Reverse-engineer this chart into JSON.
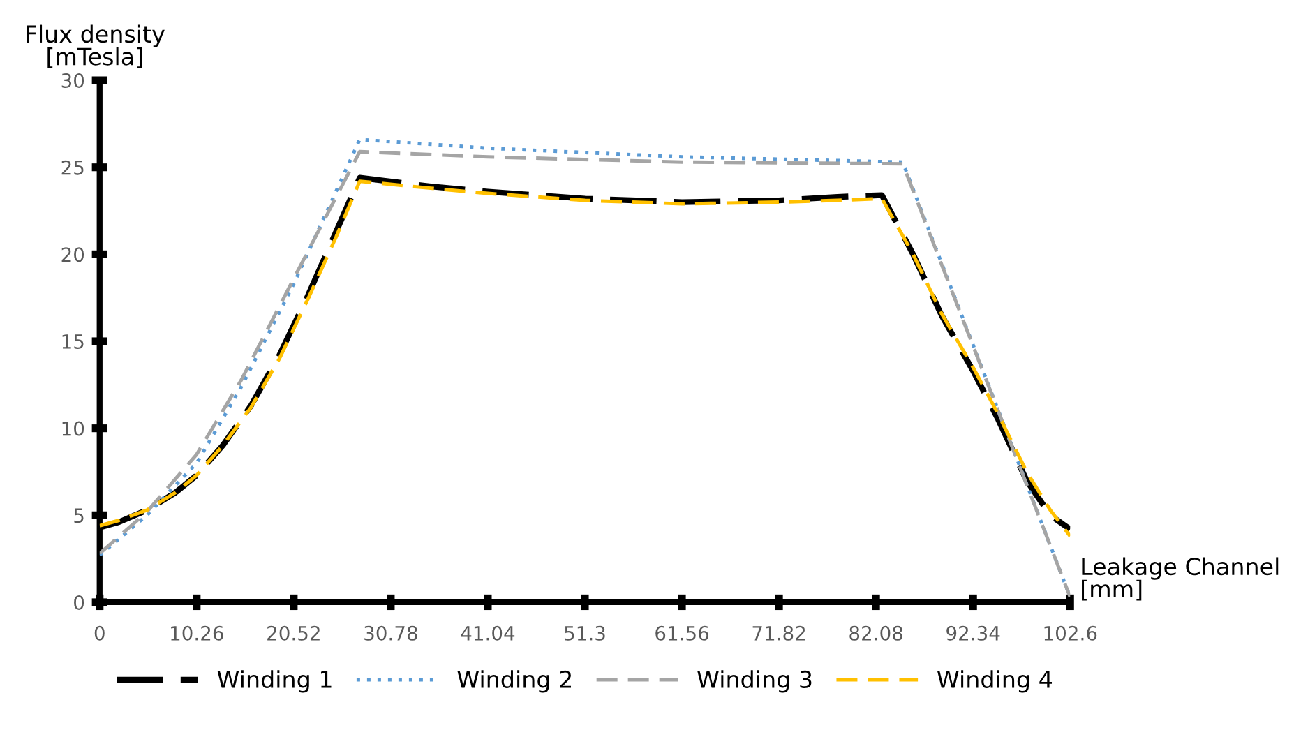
{
  "chart_data": {
    "type": "line",
    "xlabel": "Leakage Channel\n[mm]",
    "ylabel": "Flux density\n[mTesla]",
    "xlim": [
      0,
      102.6
    ],
    "xticks": [
      0,
      10.26,
      20.52,
      30.78,
      41.04,
      51.3,
      61.56,
      71.82,
      82.08,
      92.34,
      102.6
    ],
    "ylim": [
      0,
      30
    ],
    "yticks": [
      0,
      5,
      10,
      15,
      20,
      25,
      30
    ],
    "grid": false,
    "legend": "bottom",
    "series": [
      {
        "name": "Winding 1",
        "color": "#000000",
        "line_style": "dashed",
        "x": [
          0,
          2,
          5,
          8,
          10.26,
          13,
          16,
          19,
          22,
          25,
          27.5,
          35,
          41.04,
          51.3,
          61.56,
          71.82,
          78,
          82.7,
          86,
          89,
          92.34,
          95,
          98,
          100.5,
          102.6
        ],
        "values": [
          4.3,
          4.6,
          5.3,
          6.3,
          7.3,
          9.0,
          11.3,
          14.2,
          17.6,
          21.3,
          24.4,
          23.9,
          23.6,
          23.2,
          23.0,
          23.1,
          23.3,
          23.4,
          20.0,
          16.5,
          13.3,
          10.5,
          7.0,
          5.0,
          4.2
        ]
      },
      {
        "name": "Winding 2",
        "color": "#5b9bd5",
        "line_style": "dotted",
        "x": [
          0,
          5,
          10.26,
          15,
          20.52,
          27.5,
          41.04,
          61.56,
          84.9,
          102.6
        ],
        "values": [
          2.7,
          5.0,
          8.0,
          12.4,
          18.3,
          26.6,
          26.1,
          25.6,
          25.3,
          0.3
        ]
      },
      {
        "name": "Winding 3",
        "color": "#a5a5a5",
        "line_style": "dashed",
        "x": [
          0,
          5,
          10.26,
          15,
          20.52,
          27.5,
          41.04,
          61.56,
          84.9,
          102.6
        ],
        "values": [
          2.8,
          5.2,
          8.5,
          12.8,
          18.6,
          25.9,
          25.6,
          25.3,
          25.2,
          0.3
        ]
      },
      {
        "name": "Winding 4",
        "color": "#ffc000",
        "line_style": "dashed",
        "x": [
          0,
          2,
          5,
          8,
          10.26,
          13,
          16,
          19,
          22,
          25,
          27.5,
          35,
          41.04,
          51.3,
          61.56,
          71.82,
          78,
          82.7,
          86,
          89,
          92.34,
          95,
          98,
          100.5,
          102.6
        ],
        "values": [
          4.4,
          4.7,
          5.3,
          6.3,
          7.3,
          9.0,
          11.2,
          14.0,
          17.4,
          21.0,
          24.2,
          23.8,
          23.5,
          23.1,
          22.9,
          23.0,
          23.1,
          23.2,
          20.0,
          16.6,
          13.5,
          10.8,
          7.5,
          5.3,
          3.8
        ]
      }
    ]
  }
}
